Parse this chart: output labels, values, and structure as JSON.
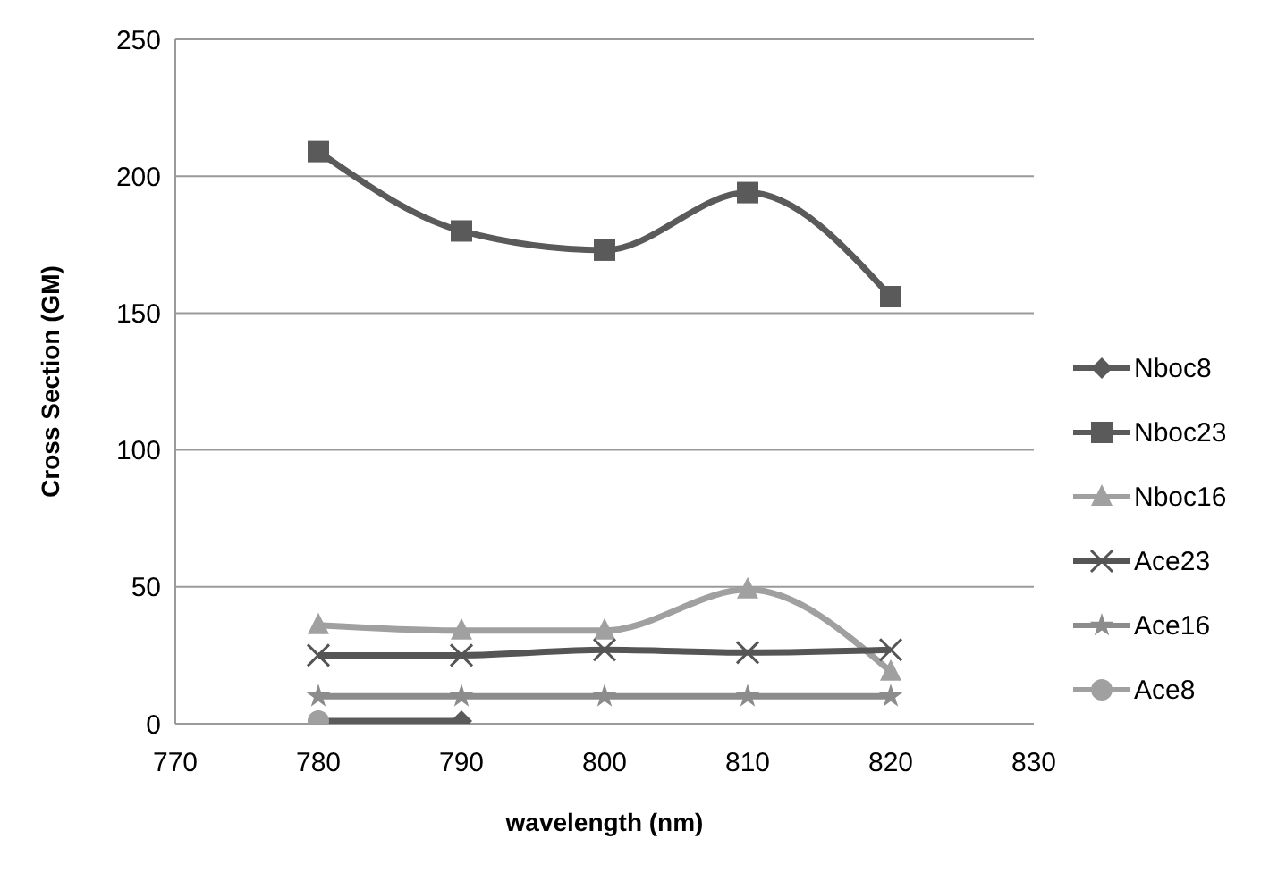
{
  "chart_data": {
    "type": "line",
    "xlabel": "wavelength (nm)",
    "ylabel": "Cross Section (GM)",
    "xlim": [
      770,
      830
    ],
    "xticks": [
      770,
      780,
      790,
      800,
      810,
      820,
      830
    ],
    "ylim": [
      0,
      250
    ],
    "yticks": [
      0,
      50,
      100,
      150,
      200,
      250
    ],
    "grid": "y",
    "legend": "right",
    "series": [
      {
        "name": "Nboc8",
        "color": "#5a5a5a",
        "marker": "diamond",
        "x": [
          780,
          790
        ],
        "values": [
          1,
          1
        ]
      },
      {
        "name": "Nboc23",
        "color": "#5a5a5a",
        "marker": "square",
        "x": [
          780,
          790,
          800,
          810,
          820
        ],
        "values": [
          209,
          180,
          173,
          194,
          156
        ]
      },
      {
        "name": "Nboc16",
        "color": "#a0a0a0",
        "marker": "triangle",
        "x": [
          780,
          790,
          800,
          810,
          820
        ],
        "values": [
          36,
          34,
          34,
          49,
          19
        ]
      },
      {
        "name": "Ace23",
        "color": "#555555",
        "marker": "cross",
        "x": [
          780,
          790,
          800,
          810,
          820
        ],
        "values": [
          25,
          25,
          27,
          26,
          27
        ]
      },
      {
        "name": "Ace16",
        "color": "#8c8c8c",
        "marker": "star",
        "x": [
          780,
          790,
          800,
          810,
          820
        ],
        "values": [
          10,
          10,
          10,
          10,
          10
        ]
      },
      {
        "name": "Ace8",
        "color": "#a0a0a0",
        "marker": "circle",
        "x": [
          780
        ],
        "values": [
          1
        ]
      }
    ]
  }
}
